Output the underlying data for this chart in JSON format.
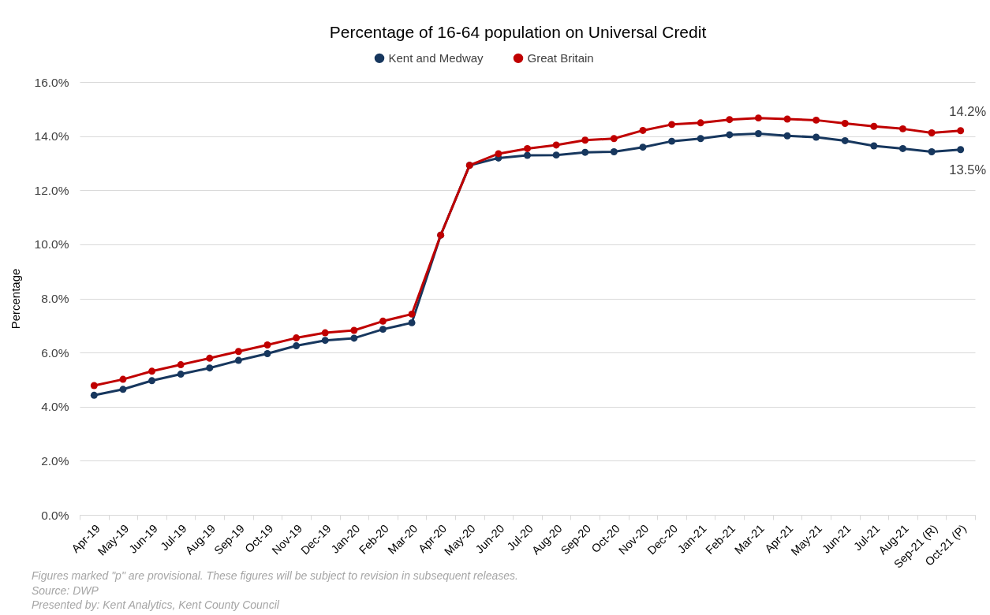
{
  "chart_data": {
    "type": "line",
    "title": "Percentage of 16-64 population on Universal Credit",
    "ylabel": "Percentage",
    "categories": [
      "Apr-19",
      "May-19",
      "Jun-19",
      "Jul-19",
      "Aug-19",
      "Sep-19",
      "Oct-19",
      "Nov-19",
      "Dec-19",
      "Jan-20",
      "Feb-20",
      "Mar-20",
      "Apr-20",
      "May-20",
      "Jun-20",
      "Jul-20",
      "Aug-20",
      "Sep-20",
      "Oct-20",
      "Nov-20",
      "Dec-20",
      "Jan-21",
      "Feb-21",
      "Mar-21",
      "Apr-21",
      "May-21",
      "Jun-21",
      "Jul-21",
      "Aug-21",
      "Sep-21 (R)",
      "Oct-21 (P)"
    ],
    "series": [
      {
        "name": "Kent and Medway",
        "color": "#17375e",
        "values": [
          4.42,
          4.64,
          4.96,
          5.2,
          5.43,
          5.71,
          5.96,
          6.25,
          6.45,
          6.53,
          6.86,
          7.1,
          10.34,
          12.92,
          13.19,
          13.29,
          13.3,
          13.4,
          13.42,
          13.59,
          13.81,
          13.91,
          14.05,
          14.09,
          14.01,
          13.96,
          13.83,
          13.64,
          13.54,
          13.42,
          13.5
        ],
        "value_labels": [
          null,
          null,
          null,
          null,
          null,
          null,
          null,
          null,
          null,
          null,
          null,
          null,
          null,
          null,
          null,
          null,
          null,
          null,
          null,
          null,
          null,
          null,
          null,
          null,
          null,
          null,
          null,
          null,
          null,
          null,
          "13.5%"
        ]
      },
      {
        "name": "Great Britain",
        "color": "#c00000",
        "values": [
          4.78,
          5.01,
          5.31,
          5.55,
          5.79,
          6.04,
          6.28,
          6.54,
          6.73,
          6.82,
          7.16,
          7.42,
          10.34,
          12.92,
          13.35,
          13.54,
          13.67,
          13.85,
          13.91,
          14.21,
          14.43,
          14.49,
          14.61,
          14.67,
          14.63,
          14.59,
          14.47,
          14.36,
          14.27,
          14.12,
          14.2
        ],
        "value_labels": [
          null,
          null,
          null,
          null,
          null,
          null,
          null,
          null,
          null,
          null,
          null,
          null,
          null,
          null,
          null,
          null,
          null,
          null,
          null,
          null,
          null,
          null,
          null,
          null,
          null,
          null,
          null,
          null,
          null,
          null,
          "14.2%"
        ]
      }
    ],
    "ylim": [
      0,
      16
    ],
    "yticks": [
      {
        "value": 0,
        "label": "0.0%"
      },
      {
        "value": 2,
        "label": "2.0%"
      },
      {
        "value": 4,
        "label": "4.0%"
      },
      {
        "value": 6,
        "label": "6.0%"
      },
      {
        "value": 8,
        "label": "8.0%"
      },
      {
        "value": 10,
        "label": "10.0%"
      },
      {
        "value": 12,
        "label": "12.0%"
      },
      {
        "value": 14,
        "label": "14.0%"
      },
      {
        "value": 16,
        "label": "16.0%"
      }
    ],
    "grid": "y",
    "legend": "top",
    "marker": "circle",
    "line_style": "solid",
    "annotations": [
      "Figures marked \"p\" are provisional. These figures will be subject to revision in subsequent releases.",
      "Source: DWP",
      "Presented by: Kent Analytics, Kent County Council"
    ]
  }
}
